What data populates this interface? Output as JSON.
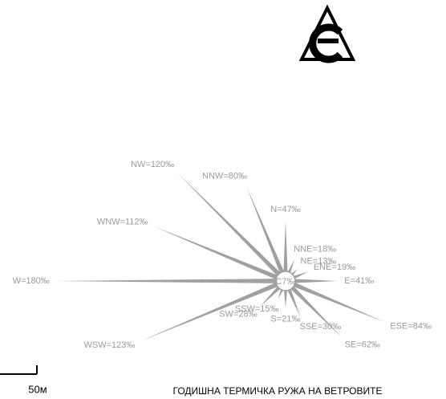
{
  "chart_data": {
    "type": "windrose",
    "title": "ГОДИШНА ТЕРМИЧКА РУЖА НА ВЕТРОВИТЕ",
    "scale_label": "50м",
    "categories": [
      "N",
      "NNE",
      "NE",
      "ENE",
      "E",
      "ESE",
      "SE",
      "SSE",
      "S",
      "SSW",
      "SW",
      "WSW",
      "W",
      "WNW",
      "NW",
      "NNW"
    ],
    "values": [
      47,
      18,
      13,
      19,
      41,
      84,
      62,
      30,
      21,
      15,
      28,
      123,
      180,
      112,
      120,
      80
    ],
    "value_labels": [
      "N=47‰",
      "NNE=18‰",
      "NE=13‰",
      "ENE=19‰",
      "E=41‰",
      "ESE=84‰",
      "SE=62‰",
      "SSE=30‰",
      "S=21‰",
      "SSW=15‰",
      "SW=28‰",
      "WSW=123‰",
      "W=180‰",
      "WNW=112‰",
      "NW=120‰",
      "NNW=80‰"
    ],
    "calm": 7,
    "calm_label": "C7‰",
    "color": "#a0a0a0"
  }
}
